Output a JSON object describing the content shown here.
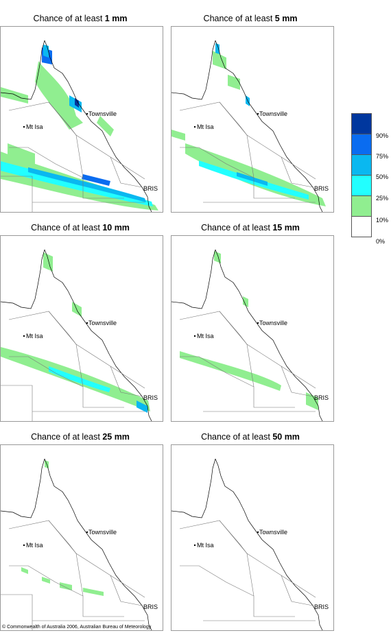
{
  "panels": [
    {
      "prefix": "Chance of at least ",
      "amount": "1 mm"
    },
    {
      "prefix": "Chance of at least ",
      "amount": "5 mm"
    },
    {
      "prefix": "Chance of at least ",
      "amount": "10 mm"
    },
    {
      "prefix": "Chance of at least ",
      "amount": "15 mm"
    },
    {
      "prefix": "Chance of at least ",
      "amount": "25 mm"
    },
    {
      "prefix": "Chance of at least ",
      "amount": "50 mm"
    }
  ],
  "places": {
    "townsville": "Townsville",
    "mt_isa": "Mt Isa",
    "brisbane": "BRIS"
  },
  "legend": {
    "labels": [
      "90%",
      "75%",
      "50%",
      "25%",
      "10%",
      "0%"
    ],
    "colors": [
      "#00379e",
      "#0a6cf0",
      "#0ab8f0",
      "#22ffff",
      "#90ee90",
      "#ffffff"
    ]
  },
  "footer": "© Commonwealth of Australia 2006, Australian Bureau of Meteorology"
}
